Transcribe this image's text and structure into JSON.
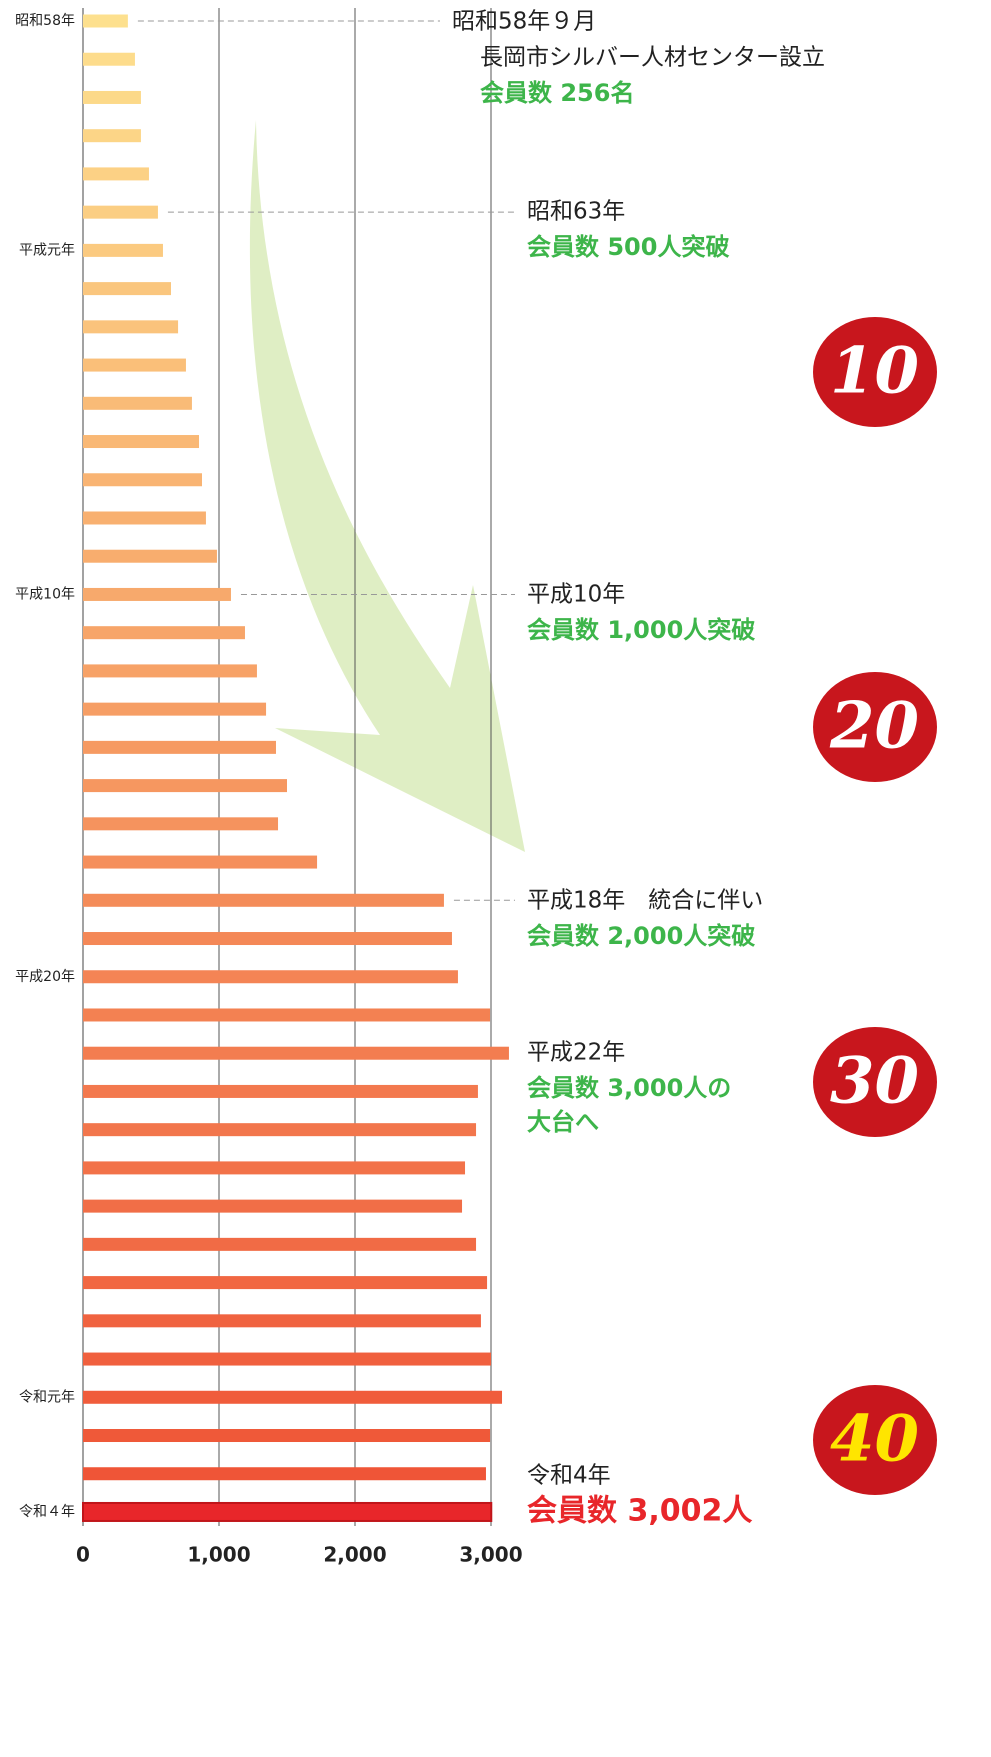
{
  "chart_data": {
    "type": "bar",
    "orientation": "horizontal",
    "categories": [
      "昭和58年",
      null,
      null,
      null,
      null,
      null,
      "平成元年",
      null,
      null,
      null,
      null,
      null,
      null,
      null,
      null,
      "平成10年",
      null,
      null,
      null,
      null,
      null,
      null,
      null,
      null,
      null,
      "平成20年",
      null,
      null,
      null,
      null,
      null,
      null,
      null,
      null,
      null,
      null,
      "令和元年",
      null,
      null,
      "令和４年"
    ],
    "values": [
      330,
      382,
      426,
      426,
      485,
      551,
      588,
      647,
      699,
      757,
      801,
      853,
      875,
      904,
      985,
      1088,
      1191,
      1279,
      1346,
      1419,
      1500,
      1434,
      1721,
      2654,
      2713,
      2757,
      2993,
      3132,
      2904,
      2890,
      2809,
      2787,
      2890,
      2971,
      2926,
      3000,
      3081,
      2993,
      2963,
      3002
    ],
    "colors": [
      "#fde08e",
      "#fddc8c",
      "#fcd989",
      "#fcd587",
      "#fcd185",
      "#fbce83",
      "#fbca80",
      "#fac67e",
      "#fac37c",
      "#fabf79",
      "#f9bb77",
      "#f9b875",
      "#f9b473",
      "#f8b070",
      "#f8ad6e",
      "#f7a96c",
      "#f7a569",
      "#f7a267",
      "#f69e65",
      "#f69a62",
      "#f69760",
      "#f5935e",
      "#f58f5c",
      "#f48c59",
      "#f48857",
      "#f48455",
      "#f38152",
      "#f37d50",
      "#f3794e",
      "#f2764c",
      "#f27249",
      "#f16e47",
      "#f16b45",
      "#f16742",
      "#f06340",
      "#f0603e",
      "#f05c3b",
      "#ef5939",
      "#ef5537",
      "#e8262a"
    ],
    "xlim": [
      0,
      3000
    ],
    "xticks": [
      0,
      {
        "value": 1000,
        "label": "1,000"
      },
      {
        "value": 2000,
        "label": "2,000"
      },
      {
        "value": 3000,
        "label": "3,000"
      }
    ],
    "grid": true,
    "annotations": [
      {
        "lines": [
          "昭和58年９月",
          "長岡市シルバー人材センター設立"
        ],
        "highlight": [
          "会員数 256名"
        ]
      },
      {
        "lines": [
          "昭和63年"
        ],
        "highlight": [
          "会員数 500人突破"
        ]
      },
      {
        "lines": [
          "平成10年"
        ],
        "highlight": [
          "会員数 1,000人突破"
        ]
      },
      {
        "lines": [
          "平成18年　統合に伴い"
        ],
        "highlight": [
          "会員数 2,000人突破"
        ]
      },
      {
        "lines": [
          "平成22年"
        ],
        "highlight": [
          "会員数 3,000人の",
          "大台へ"
        ]
      },
      {
        "lines": [
          "令和4年"
        ],
        "highlight": [
          "会員数  3,002人"
        ]
      }
    ],
    "badges": [
      "10",
      "20",
      "30",
      "40"
    ]
  }
}
